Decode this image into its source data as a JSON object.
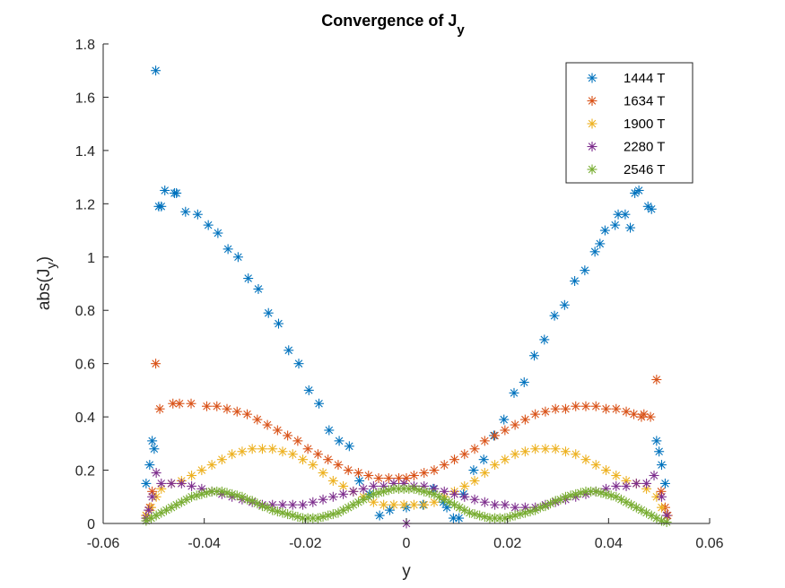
{
  "chart_data": {
    "type": "scatter",
    "title": "Convergence of J",
    "title_subscript": "y",
    "xlabel": "y",
    "ylabel_main": "abs(J",
    "ylabel_sub": "y",
    "ylabel_close": ")",
    "xlim": [
      -0.06,
      0.06
    ],
    "ylim": [
      0,
      1.8
    ],
    "xticks": [
      -0.06,
      -0.04,
      -0.02,
      0,
      0.02,
      0.04,
      0.06
    ],
    "xtick_labels": [
      "-0.06",
      "-0.04",
      "-0.02",
      "0",
      "0.02",
      "0.04",
      "0.06"
    ],
    "yticks": [
      0,
      0.2,
      0.4,
      0.6,
      0.8,
      1,
      1.2,
      1.4,
      1.6,
      1.8
    ],
    "ytick_labels": [
      "0",
      "0.2",
      "0.4",
      "0.6",
      "0.8",
      "1",
      "1.2",
      "1.4",
      "1.6",
      "1.8"
    ],
    "grid": false,
    "legend_position": "top-right",
    "marker": "asterisk",
    "series": [
      {
        "name": "1444 T",
        "color": "#0072BD",
        "x": [
          -0.0515,
          -0.0508,
          -0.0503,
          -0.0499,
          -0.0496,
          -0.049,
          -0.0485,
          -0.0478,
          -0.0459,
          -0.0455,
          -0.0437,
          -0.0413,
          -0.0392,
          -0.0373,
          -0.0353,
          -0.0333,
          -0.0313,
          -0.0293,
          -0.0273,
          -0.0253,
          -0.0233,
          -0.0213,
          -0.0193,
          -0.0173,
          -0.0153,
          -0.0133,
          -0.0113,
          -0.0093,
          -0.0073,
          -0.0053,
          -0.0033,
          0.0,
          0.0033,
          0.0053,
          0.0073,
          0.008,
          0.0093,
          0.0104,
          0.0113,
          0.0133,
          0.0153,
          0.0173,
          0.0193,
          0.0213,
          0.0233,
          0.0253,
          0.0273,
          0.0293,
          0.0313,
          0.0333,
          0.0353,
          0.0373,
          0.0383,
          0.0393,
          0.0413,
          0.0419,
          0.0433,
          0.0443,
          0.0452,
          0.046,
          0.0478,
          0.0485,
          0.0495,
          0.05,
          0.0505,
          0.0512
        ],
        "y": [
          0.15,
          0.22,
          0.31,
          0.28,
          1.7,
          1.19,
          1.19,
          1.25,
          1.24,
          1.24,
          1.17,
          1.16,
          1.12,
          1.09,
          1.03,
          1.0,
          0.92,
          0.88,
          0.79,
          0.75,
          0.65,
          0.6,
          0.5,
          0.45,
          0.35,
          0.31,
          0.29,
          0.16,
          0.11,
          0.03,
          0.05,
          0.06,
          0.07,
          0.13,
          0.08,
          0.06,
          0.02,
          0.02,
          0.11,
          0.2,
          0.24,
          0.33,
          0.39,
          0.49,
          0.53,
          0.63,
          0.69,
          0.78,
          0.82,
          0.91,
          0.95,
          1.02,
          1.05,
          1.1,
          1.12,
          1.16,
          1.16,
          1.11,
          1.24,
          1.25,
          1.19,
          1.18,
          0.31,
          0.27,
          0.22,
          0.15
        ]
      },
      {
        "name": "1634 T",
        "color": "#D95319",
        "x": [
          -0.0515,
          -0.0508,
          -0.0503,
          -0.0496,
          -0.0488,
          -0.0462,
          -0.0449,
          -0.0426,
          -0.0395,
          -0.0375,
          -0.0355,
          -0.0335,
          -0.0315,
          -0.0295,
          -0.0275,
          -0.0255,
          -0.0235,
          -0.0215,
          -0.0195,
          -0.0175,
          -0.0155,
          -0.0135,
          -0.0115,
          -0.0095,
          -0.0075,
          -0.0055,
          -0.0035,
          -0.0015,
          0.0,
          0.0015,
          0.0035,
          0.0055,
          0.0075,
          0.0095,
          0.0115,
          0.0135,
          0.0155,
          0.0175,
          0.0195,
          0.0215,
          0.0235,
          0.0255,
          0.0275,
          0.0295,
          0.0315,
          0.0335,
          0.0355,
          0.0375,
          0.0395,
          0.0415,
          0.0435,
          0.045,
          0.0465,
          0.047,
          0.0483,
          0.0495,
          0.0504,
          0.0512,
          0.0517
        ],
        "y": [
          0.03,
          0.06,
          0.12,
          0.6,
          0.43,
          0.45,
          0.45,
          0.45,
          0.44,
          0.44,
          0.43,
          0.42,
          0.41,
          0.39,
          0.37,
          0.35,
          0.33,
          0.31,
          0.28,
          0.26,
          0.24,
          0.22,
          0.2,
          0.19,
          0.18,
          0.17,
          0.17,
          0.17,
          0.17,
          0.18,
          0.19,
          0.2,
          0.22,
          0.24,
          0.26,
          0.28,
          0.31,
          0.33,
          0.35,
          0.37,
          0.39,
          0.41,
          0.42,
          0.43,
          0.43,
          0.44,
          0.44,
          0.44,
          0.43,
          0.43,
          0.42,
          0.41,
          0.4,
          0.41,
          0.4,
          0.54,
          0.12,
          0.06,
          0.03
        ]
      },
      {
        "name": "1900 T",
        "color": "#EDB120",
        "x": [
          -0.0515,
          -0.0505,
          -0.0495,
          -0.0485,
          -0.0465,
          -0.0445,
          -0.0425,
          -0.0405,
          -0.0385,
          -0.0365,
          -0.0345,
          -0.0325,
          -0.0305,
          -0.0285,
          -0.0265,
          -0.0245,
          -0.0225,
          -0.0205,
          -0.0185,
          -0.0165,
          -0.0145,
          -0.0125,
          -0.0105,
          -0.0085,
          -0.0065,
          -0.0045,
          -0.0025,
          -0.0005,
          0.0015,
          0.0035,
          0.0055,
          0.0075,
          0.0095,
          0.0115,
          0.0135,
          0.0155,
          0.0175,
          0.0195,
          0.0215,
          0.0235,
          0.0255,
          0.0275,
          0.0295,
          0.0315,
          0.0335,
          0.0355,
          0.0375,
          0.0395,
          0.0415,
          0.0435,
          0.0455,
          0.0475,
          0.0495,
          0.0505,
          0.0515
        ],
        "y": [
          0.03,
          0.06,
          0.1,
          0.13,
          0.15,
          0.16,
          0.18,
          0.2,
          0.22,
          0.24,
          0.26,
          0.27,
          0.28,
          0.28,
          0.28,
          0.27,
          0.26,
          0.24,
          0.22,
          0.19,
          0.16,
          0.14,
          0.12,
          0.1,
          0.08,
          0.07,
          0.07,
          0.07,
          0.07,
          0.07,
          0.08,
          0.1,
          0.12,
          0.14,
          0.16,
          0.19,
          0.22,
          0.24,
          0.26,
          0.27,
          0.28,
          0.28,
          0.28,
          0.27,
          0.26,
          0.24,
          0.22,
          0.2,
          0.18,
          0.16,
          0.15,
          0.13,
          0.1,
          0.06,
          0.03
        ]
      },
      {
        "name": "2280 T",
        "color": "#7E2F8E",
        "x": [
          -0.0515,
          -0.051,
          -0.0503,
          -0.0495,
          -0.0485,
          -0.0465,
          -0.0445,
          -0.0425,
          -0.0405,
          -0.0385,
          -0.0365,
          -0.0345,
          -0.0325,
          -0.0305,
          -0.0285,
          -0.0265,
          -0.0245,
          -0.0225,
          -0.0205,
          -0.0185,
          -0.0165,
          -0.0145,
          -0.0125,
          -0.0105,
          -0.0085,
          -0.0065,
          -0.0045,
          -0.0025,
          -0.0005,
          0.0,
          0.0015,
          0.0035,
          0.0055,
          0.0075,
          0.0095,
          0.0115,
          0.0135,
          0.0155,
          0.0175,
          0.0195,
          0.0215,
          0.0235,
          0.0255,
          0.0275,
          0.0295,
          0.0315,
          0.0335,
          0.0355,
          0.0375,
          0.0395,
          0.0415,
          0.0435,
          0.0455,
          0.0475,
          0.049,
          0.0505,
          0.0515
        ],
        "y": [
          0.02,
          0.05,
          0.1,
          0.19,
          0.15,
          0.15,
          0.15,
          0.14,
          0.13,
          0.12,
          0.11,
          0.1,
          0.09,
          0.08,
          0.07,
          0.07,
          0.07,
          0.07,
          0.07,
          0.08,
          0.09,
          0.1,
          0.11,
          0.12,
          0.13,
          0.14,
          0.14,
          0.15,
          0.15,
          0.0,
          0.14,
          0.14,
          0.13,
          0.12,
          0.11,
          0.1,
          0.09,
          0.08,
          0.07,
          0.07,
          0.06,
          0.06,
          0.06,
          0.07,
          0.08,
          0.09,
          0.1,
          0.11,
          0.12,
          0.13,
          0.14,
          0.14,
          0.15,
          0.15,
          0.18,
          0.1,
          0.03
        ]
      },
      {
        "name": "2546 T",
        "color": "#77AC30",
        "x": [
          -0.0515,
          -0.0505,
          -0.0495,
          -0.0485,
          -0.0475,
          -0.0465,
          -0.0455,
          -0.0445,
          -0.0435,
          -0.0425,
          -0.0415,
          -0.0405,
          -0.0395,
          -0.0385,
          -0.0375,
          -0.0365,
          -0.0355,
          -0.0345,
          -0.0335,
          -0.0325,
          -0.0315,
          -0.0305,
          -0.0295,
          -0.0285,
          -0.0275,
          -0.0265,
          -0.0255,
          -0.0245,
          -0.0235,
          -0.0225,
          -0.0215,
          -0.0205,
          -0.0195,
          -0.0185,
          -0.0175,
          -0.0165,
          -0.0155,
          -0.0145,
          -0.0135,
          -0.0125,
          -0.0115,
          -0.0105,
          -0.0095,
          -0.0085,
          -0.0075,
          -0.0065,
          -0.0055,
          -0.0045,
          -0.0035,
          -0.0025,
          -0.0015,
          -0.0005,
          0.0005,
          0.0015,
          0.0025,
          0.0035,
          0.0045,
          0.0055,
          0.0065,
          0.0075,
          0.0085,
          0.0095,
          0.0105,
          0.0115,
          0.0125,
          0.0135,
          0.0145,
          0.0155,
          0.0165,
          0.0175,
          0.0185,
          0.0195,
          0.0205,
          0.0215,
          0.0225,
          0.0235,
          0.0245,
          0.0255,
          0.0265,
          0.0275,
          0.0285,
          0.0295,
          0.0305,
          0.0315,
          0.0325,
          0.0335,
          0.0345,
          0.0355,
          0.0365,
          0.0375,
          0.0385,
          0.0395,
          0.0405,
          0.0415,
          0.0425,
          0.0435,
          0.0445,
          0.0455,
          0.0465,
          0.0475,
          0.0485,
          0.0495,
          0.0505,
          0.0515
        ],
        "y": [
          0.01,
          0.02,
          0.03,
          0.04,
          0.05,
          0.06,
          0.07,
          0.08,
          0.09,
          0.1,
          0.105,
          0.11,
          0.115,
          0.12,
          0.12,
          0.12,
          0.115,
          0.11,
          0.105,
          0.1,
          0.09,
          0.085,
          0.075,
          0.065,
          0.06,
          0.05,
          0.045,
          0.04,
          0.035,
          0.03,
          0.025,
          0.02,
          0.02,
          0.02,
          0.02,
          0.025,
          0.03,
          0.035,
          0.04,
          0.05,
          0.06,
          0.07,
          0.08,
          0.09,
          0.1,
          0.11,
          0.115,
          0.12,
          0.125,
          0.13,
          0.13,
          0.13,
          0.13,
          0.13,
          0.125,
          0.12,
          0.115,
          0.11,
          0.1,
          0.09,
          0.08,
          0.07,
          0.06,
          0.05,
          0.04,
          0.035,
          0.03,
          0.025,
          0.02,
          0.02,
          0.02,
          0.02,
          0.025,
          0.03,
          0.035,
          0.04,
          0.045,
          0.05,
          0.06,
          0.065,
          0.075,
          0.085,
          0.09,
          0.1,
          0.105,
          0.11,
          0.115,
          0.12,
          0.12,
          0.12,
          0.115,
          0.11,
          0.105,
          0.1,
          0.09,
          0.08,
          0.07,
          0.06,
          0.05,
          0.04,
          0.03,
          0.02,
          0.01,
          0.005
        ]
      }
    ]
  }
}
